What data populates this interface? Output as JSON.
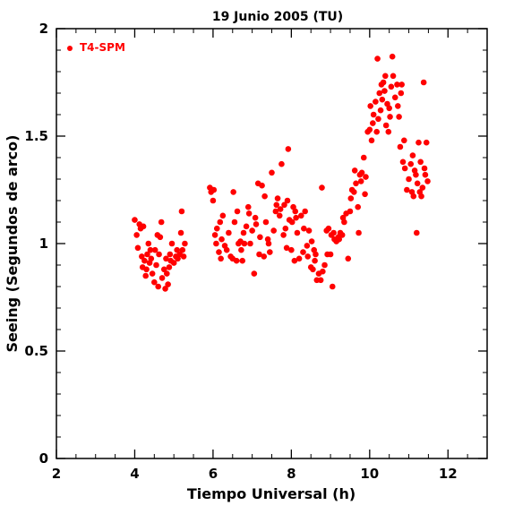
{
  "chart_data": {
    "type": "scatter",
    "title": "19 Junio 2005 (TU)",
    "xlabel": "Tiempo Universal (h)",
    "ylabel": "Seeing (Segundos de arco)",
    "xlim": [
      2,
      13
    ],
    "ylim": [
      0,
      2
    ],
    "xticks": [
      "2",
      "4",
      "6",
      "8",
      "10",
      "12"
    ],
    "yticks": [
      "0",
      "0.5",
      "1",
      "1.5",
      "2"
    ],
    "grid": false,
    "series": [
      {
        "name": "T4-SPM",
        "color": "#ff0000",
        "points": [
          [
            4.0,
            1.11
          ],
          [
            4.05,
            1.04
          ],
          [
            4.08,
            0.98
          ],
          [
            4.12,
            1.09
          ],
          [
            4.15,
            1.07
          ],
          [
            4.18,
            0.94
          ],
          [
            4.2,
            0.89
          ],
          [
            4.22,
            1.08
          ],
          [
            4.25,
            0.92
          ],
          [
            4.28,
            0.85
          ],
          [
            4.3,
            0.88
          ],
          [
            4.32,
            0.95
          ],
          [
            4.35,
            1.0
          ],
          [
            4.38,
            0.91
          ],
          [
            4.4,
            0.97
          ],
          [
            4.42,
            0.93
          ],
          [
            4.45,
            0.86
          ],
          [
            4.5,
            0.82
          ],
          [
            4.52,
            0.97
          ],
          [
            4.55,
            0.9
          ],
          [
            4.58,
            1.04
          ],
          [
            4.6,
            0.8
          ],
          [
            4.62,
            0.95
          ],
          [
            4.65,
            1.03
          ],
          [
            4.68,
            1.1
          ],
          [
            4.7,
            0.84
          ],
          [
            4.75,
            0.88
          ],
          [
            4.78,
            0.79
          ],
          [
            4.8,
            0.93
          ],
          [
            4.82,
            0.86
          ],
          [
            4.85,
            0.81
          ],
          [
            4.88,
            0.89
          ],
          [
            4.9,
            0.95
          ],
          [
            4.92,
            0.92
          ],
          [
            4.95,
            1.0
          ],
          [
            5.0,
            0.91
          ],
          [
            5.05,
            0.94
          ],
          [
            5.08,
            0.97
          ],
          [
            5.1,
            0.93
          ],
          [
            5.15,
            0.95
          ],
          [
            5.18,
            1.05
          ],
          [
            5.2,
            1.15
          ],
          [
            5.22,
            0.97
          ],
          [
            5.25,
            0.94
          ],
          [
            5.28,
            1.0
          ],
          [
            5.92,
            1.26
          ],
          [
            5.95,
            1.24
          ],
          [
            6.0,
            1.2
          ],
          [
            6.02,
            1.25
          ],
          [
            6.05,
            1.04
          ],
          [
            6.08,
            1.0
          ],
          [
            6.1,
            1.07
          ],
          [
            6.15,
            0.96
          ],
          [
            6.18,
            1.1
          ],
          [
            6.2,
            0.93
          ],
          [
            6.22,
            1.02
          ],
          [
            6.25,
            1.13
          ],
          [
            6.3,
            0.99
          ],
          [
            6.35,
            0.97
          ],
          [
            6.4,
            1.05
          ],
          [
            6.45,
            0.94
          ],
          [
            6.5,
            0.93
          ],
          [
            6.52,
            1.24
          ],
          [
            6.55,
            1.1
          ],
          [
            6.6,
            0.92
          ],
          [
            6.62,
            1.15
          ],
          [
            6.65,
            1.0
          ],
          [
            6.7,
            1.01
          ],
          [
            6.72,
            0.97
          ],
          [
            6.75,
            0.92
          ],
          [
            6.78,
            1.05
          ],
          [
            6.8,
            1.0
          ],
          [
            6.85,
            1.08
          ],
          [
            6.9,
            1.17
          ],
          [
            6.92,
            1.14
          ],
          [
            6.95,
            1.0
          ],
          [
            7.0,
            1.06
          ],
          [
            7.05,
            0.86
          ],
          [
            7.08,
            1.12
          ],
          [
            7.1,
            1.09
          ],
          [
            7.15,
            1.28
          ],
          [
            7.18,
            0.95
          ],
          [
            7.2,
            1.03
          ],
          [
            7.25,
            1.27
          ],
          [
            7.3,
            0.94
          ],
          [
            7.32,
            1.22
          ],
          [
            7.35,
            1.1
          ],
          [
            7.4,
            1.02
          ],
          [
            7.42,
            1.0
          ],
          [
            7.45,
            0.96
          ],
          [
            7.5,
            1.33
          ],
          [
            7.55,
            1.06
          ],
          [
            7.6,
            1.15
          ],
          [
            7.62,
            1.18
          ],
          [
            7.65,
            1.21
          ],
          [
            7.7,
            1.13
          ],
          [
            7.72,
            1.16
          ],
          [
            7.75,
            1.37
          ],
          [
            7.8,
            1.04
          ],
          [
            7.82,
            1.18
          ],
          [
            7.85,
            1.07
          ],
          [
            7.88,
            0.98
          ],
          [
            7.9,
            1.2
          ],
          [
            7.92,
            1.44
          ],
          [
            7.95,
            1.11
          ],
          [
            8.0,
            0.97
          ],
          [
            8.02,
            1.1
          ],
          [
            8.05,
            1.17
          ],
          [
            8.08,
            0.92
          ],
          [
            8.1,
            1.15
          ],
          [
            8.12,
            1.12
          ],
          [
            8.15,
            1.05
          ],
          [
            8.2,
            0.93
          ],
          [
            8.25,
            1.13
          ],
          [
            8.3,
            0.96
          ],
          [
            8.32,
            1.07
          ],
          [
            8.35,
            1.15
          ],
          [
            8.4,
            0.99
          ],
          [
            8.42,
            0.94
          ],
          [
            8.45,
            1.06
          ],
          [
            8.5,
            0.89
          ],
          [
            8.52,
            1.01
          ],
          [
            8.55,
            0.88
          ],
          [
            8.58,
            0.97
          ],
          [
            8.6,
            0.92
          ],
          [
            8.62,
            0.95
          ],
          [
            8.65,
            0.83
          ],
          [
            8.7,
            0.86
          ],
          [
            8.75,
            0.83
          ],
          [
            8.78,
            1.26
          ],
          [
            8.8,
            0.87
          ],
          [
            8.85,
            0.9
          ],
          [
            8.9,
            1.06
          ],
          [
            8.92,
            0.95
          ],
          [
            8.95,
            1.07
          ],
          [
            9.0,
            0.95
          ],
          [
            9.02,
            1.04
          ],
          [
            9.05,
            0.8
          ],
          [
            9.08,
            1.05
          ],
          [
            9.1,
            1.02
          ],
          [
            9.15,
            1.01
          ],
          [
            9.2,
            1.03
          ],
          [
            9.22,
            1.02
          ],
          [
            9.25,
            1.05
          ],
          [
            9.3,
            1.04
          ],
          [
            9.32,
            1.12
          ],
          [
            9.35,
            1.1
          ],
          [
            9.4,
            1.14
          ],
          [
            9.45,
            0.93
          ],
          [
            9.5,
            1.15
          ],
          [
            9.52,
            1.21
          ],
          [
            9.55,
            1.25
          ],
          [
            9.6,
            1.24
          ],
          [
            9.62,
            1.34
          ],
          [
            9.65,
            1.28
          ],
          [
            9.7,
            1.17
          ],
          [
            9.72,
            1.05
          ],
          [
            9.75,
            1.32
          ],
          [
            9.78,
            1.29
          ],
          [
            9.8,
            1.33
          ],
          [
            9.85,
            1.4
          ],
          [
            9.88,
            1.23
          ],
          [
            9.9,
            1.31
          ],
          [
            9.95,
            1.52
          ],
          [
            10.0,
            1.53
          ],
          [
            10.02,
            1.64
          ],
          [
            10.05,
            1.48
          ],
          [
            10.08,
            1.56
          ],
          [
            10.1,
            1.6
          ],
          [
            10.15,
            1.66
          ],
          [
            10.18,
            1.52
          ],
          [
            10.2,
            1.86
          ],
          [
            10.22,
            1.58
          ],
          [
            10.25,
            1.7
          ],
          [
            10.28,
            1.62
          ],
          [
            10.3,
            1.74
          ],
          [
            10.32,
            1.67
          ],
          [
            10.35,
            1.75
          ],
          [
            10.38,
            1.71
          ],
          [
            10.4,
            1.78
          ],
          [
            10.42,
            1.55
          ],
          [
            10.45,
            1.65
          ],
          [
            10.48,
            1.52
          ],
          [
            10.5,
            1.63
          ],
          [
            10.52,
            1.59
          ],
          [
            10.55,
            1.73
          ],
          [
            10.58,
            1.87
          ],
          [
            10.6,
            1.78
          ],
          [
            10.65,
            1.68
          ],
          [
            10.7,
            1.74
          ],
          [
            10.72,
            1.64
          ],
          [
            10.75,
            1.59
          ],
          [
            10.78,
            1.45
          ],
          [
            10.8,
            1.7
          ],
          [
            10.82,
            1.74
          ],
          [
            10.85,
            1.38
          ],
          [
            10.88,
            1.48
          ],
          [
            10.9,
            1.35
          ],
          [
            10.95,
            1.25
          ],
          [
            11.0,
            1.3
          ],
          [
            11.05,
            1.37
          ],
          [
            11.08,
            1.24
          ],
          [
            11.1,
            1.41
          ],
          [
            11.12,
            1.22
          ],
          [
            11.15,
            1.34
          ],
          [
            11.18,
            1.32
          ],
          [
            11.2,
            1.05
          ],
          [
            11.22,
            1.28
          ],
          [
            11.25,
            1.47
          ],
          [
            11.28,
            1.24
          ],
          [
            11.3,
            1.38
          ],
          [
            11.32,
            1.22
          ],
          [
            11.35,
            1.26
          ],
          [
            11.38,
            1.75
          ],
          [
            11.4,
            1.35
          ],
          [
            11.42,
            1.32
          ],
          [
            11.45,
            1.47
          ],
          [
            11.48,
            1.29
          ]
        ]
      }
    ]
  }
}
